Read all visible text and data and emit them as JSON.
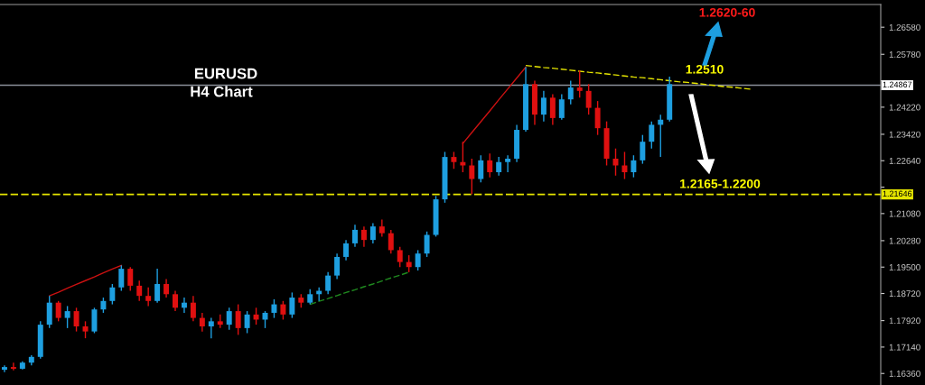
{
  "chart_data": {
    "type": "candlestick",
    "categories": [
      null,
      null,
      null,
      null,
      null,
      null,
      null,
      null,
      null,
      null,
      null,
      null,
      null,
      null,
      null,
      null,
      null,
      null,
      null,
      null,
      null,
      null,
      null,
      null,
      null,
      null,
      null,
      null,
      null,
      null,
      null,
      null,
      null,
      null,
      null,
      null,
      null,
      null,
      null,
      null,
      null,
      null,
      null,
      null,
      null,
      null,
      null,
      null,
      null,
      null,
      null,
      null,
      null,
      null,
      null,
      null,
      null,
      null,
      null,
      null,
      null,
      null,
      null,
      null,
      null,
      null,
      null,
      null,
      null,
      null,
      null,
      null,
      null,
      null,
      null,
      null,
      null,
      null,
      null,
      null,
      null,
      null,
      null,
      null,
      null,
      null,
      null,
      null,
      null,
      null,
      null,
      null,
      null,
      null,
      null,
      null,
      null,
      null
    ],
    "ohlc": [
      [
        1.1647,
        1.166,
        1.164,
        1.1655
      ],
      [
        1.1655,
        1.1668,
        1.1645,
        1.165
      ],
      [
        1.165,
        1.1672,
        1.1648,
        1.1668
      ],
      [
        1.1668,
        1.169,
        1.166,
        1.1685
      ],
      [
        1.1685,
        1.179,
        1.168,
        1.178
      ],
      [
        1.178,
        1.1865,
        1.177,
        1.1845
      ],
      [
        1.1845,
        1.185,
        1.179,
        1.18
      ],
      [
        1.18,
        1.1835,
        1.177,
        1.182
      ],
      [
        1.182,
        1.183,
        1.176,
        1.1775
      ],
      [
        1.1775,
        1.179,
        1.174,
        1.176
      ],
      [
        1.176,
        1.183,
        1.1755,
        1.1825
      ],
      [
        1.1825,
        1.186,
        1.1815,
        1.185
      ],
      [
        1.185,
        1.19,
        1.184,
        1.189
      ],
      [
        1.189,
        1.1955,
        1.188,
        1.1945
      ],
      [
        1.1945,
        1.195,
        1.188,
        1.1895
      ],
      [
        1.1895,
        1.191,
        1.185,
        1.1865
      ],
      [
        1.1865,
        1.189,
        1.1835,
        1.185
      ],
      [
        1.185,
        1.1945,
        1.1845,
        1.19
      ],
      [
        1.19,
        1.1915,
        1.186,
        1.187
      ],
      [
        1.187,
        1.188,
        1.182,
        1.183
      ],
      [
        1.183,
        1.186,
        1.1815,
        1.1845
      ],
      [
        1.1845,
        1.1865,
        1.179,
        1.18
      ],
      [
        1.18,
        1.1815,
        1.176,
        1.1775
      ],
      [
        1.1775,
        1.18,
        1.174,
        1.179
      ],
      [
        1.179,
        1.181,
        1.177,
        1.178
      ],
      [
        1.178,
        1.183,
        1.1765,
        1.182
      ],
      [
        1.182,
        1.184,
        1.175,
        1.177
      ],
      [
        1.177,
        1.182,
        1.1755,
        1.181
      ],
      [
        1.181,
        1.183,
        1.178,
        1.1795
      ],
      [
        1.1795,
        1.182,
        1.177,
        1.1815
      ],
      [
        1.1815,
        1.1855,
        1.18,
        1.184
      ],
      [
        1.184,
        1.185,
        1.1795,
        1.181
      ],
      [
        1.181,
        1.1875,
        1.18,
        1.186
      ],
      [
        1.186,
        1.187,
        1.183,
        1.1845
      ],
      [
        1.1845,
        1.1885,
        1.184,
        1.187
      ],
      [
        1.187,
        1.189,
        1.185,
        1.188
      ],
      [
        1.188,
        1.1935,
        1.187,
        1.1925
      ],
      [
        1.1925,
        1.199,
        1.1915,
        1.198
      ],
      [
        1.198,
        1.203,
        1.197,
        1.202
      ],
      [
        1.202,
        1.2075,
        1.201,
        1.206
      ],
      [
        1.206,
        1.207,
        1.201,
        1.203
      ],
      [
        1.203,
        1.208,
        1.202,
        1.207
      ],
      [
        1.207,
        1.209,
        1.204,
        1.205
      ],
      [
        1.205,
        1.206,
        1.199,
        1.2
      ],
      [
        1.2,
        1.201,
        1.195,
        1.1965
      ],
      [
        1.1965,
        1.1985,
        1.1935,
        1.195
      ],
      [
        1.195,
        1.2,
        1.194,
        1.199
      ],
      [
        1.199,
        1.2055,
        1.198,
        1.2045
      ],
      [
        1.2045,
        1.216,
        1.204,
        1.215
      ],
      [
        1.215,
        1.229,
        1.214,
        1.2275
      ],
      [
        1.2275,
        1.229,
        1.224,
        1.226
      ],
      [
        1.226,
        1.232,
        1.223,
        1.225
      ],
      [
        1.225,
        1.227,
        1.2165,
        1.221
      ],
      [
        1.221,
        1.228,
        1.22,
        1.2265
      ],
      [
        1.2265,
        1.2285,
        1.2215,
        1.223
      ],
      [
        1.223,
        1.2275,
        1.222,
        1.226
      ],
      [
        1.226,
        1.228,
        1.223,
        1.227
      ],
      [
        1.227,
        1.237,
        1.226,
        1.2355
      ],
      [
        1.2355,
        1.254,
        1.235,
        1.249
      ],
      [
        1.249,
        1.25,
        1.237,
        1.24
      ],
      [
        1.24,
        1.247,
        1.238,
        1.245
      ],
      [
        1.245,
        1.246,
        1.237,
        1.239
      ],
      [
        1.239,
        1.246,
        1.2385,
        1.2445
      ],
      [
        1.2445,
        1.25,
        1.243,
        1.248
      ],
      [
        1.248,
        1.253,
        1.245,
        1.247
      ],
      [
        1.247,
        1.249,
        1.24,
        1.242
      ],
      [
        1.242,
        1.244,
        1.234,
        1.236
      ],
      [
        1.236,
        1.238,
        1.225,
        1.227
      ],
      [
        1.227,
        1.23,
        1.222,
        1.225
      ],
      [
        1.225,
        1.229,
        1.221,
        1.223
      ],
      [
        1.223,
        1.228,
        1.2215,
        1.2265
      ],
      [
        1.2265,
        1.234,
        1.2255,
        1.232
      ],
      [
        1.232,
        1.238,
        1.23,
        1.237
      ],
      [
        1.237,
        1.24,
        1.2275,
        1.2385
      ],
      [
        1.2385,
        1.2512,
        1.238,
        1.249
      ],
      null,
      null,
      null,
      null,
      null,
      null,
      null,
      null,
      null,
      null,
      null,
      null,
      null,
      null,
      null,
      null,
      null,
      null,
      null,
      null,
      null,
      null,
      null
    ],
    "series": [
      {
        "type": "line",
        "color": "#e5e500",
        "line_style": "dashed",
        "values": [
          null,
          null,
          null,
          null,
          null,
          null,
          null,
          null,
          null,
          null,
          null,
          null,
          null,
          null,
          null,
          null,
          null,
          null,
          null,
          null,
          null,
          null,
          null,
          null,
          null,
          null,
          null,
          null,
          null,
          null,
          null,
          null,
          null,
          null,
          null,
          null,
          null,
          null,
          null,
          null,
          null,
          null,
          null,
          null,
          null,
          null,
          null,
          null,
          null,
          null,
          null,
          null,
          null,
          null,
          null,
          null,
          null,
          null,
          1.2545,
          1.2542,
          1.2539,
          1.2537,
          1.2534,
          1.2531,
          1.2528,
          1.2525,
          1.2523,
          1.252,
          1.2517,
          1.2514,
          1.2511,
          1.2509,
          1.2506,
          1.2503,
          1.25,
          1.2497,
          1.2495,
          1.2492,
          1.2489,
          1.2486,
          1.2483,
          1.2481,
          1.2478,
          1.2475,
          null,
          null,
          null,
          null,
          null,
          null,
          null,
          null,
          null,
          null,
          null,
          null,
          null,
          null
        ]
      },
      {
        "type": "line",
        "color": "#cc1111",
        "line_style": "solid",
        "values": [
          null,
          null,
          null,
          null,
          null,
          1.1865,
          1.1876,
          1.1888,
          1.1899,
          1.191,
          1.1921,
          1.1933,
          1.1944,
          1.1955,
          null,
          null,
          null,
          null,
          null,
          null,
          null,
          null,
          null,
          null,
          null,
          null,
          null,
          null,
          null,
          null,
          null,
          null,
          null,
          null,
          null,
          null,
          null,
          null,
          null,
          null,
          null,
          null,
          null,
          null,
          null,
          null,
          null,
          null,
          null,
          null,
          null,
          null,
          null,
          null,
          null,
          null,
          null,
          null,
          null,
          null,
          null,
          null,
          null,
          null,
          null,
          null,
          null,
          null,
          null,
          null,
          null,
          null,
          null,
          null,
          null,
          null,
          null,
          null,
          null,
          null,
          null,
          null,
          null,
          null,
          null,
          null,
          null,
          null,
          null,
          null,
          null,
          null,
          null,
          null,
          null,
          null,
          null,
          null
        ]
      },
      {
        "type": "line",
        "color": "#cc1111",
        "line_style": "solid",
        "values": [
          null,
          null,
          null,
          null,
          null,
          null,
          null,
          null,
          null,
          null,
          null,
          null,
          null,
          null,
          null,
          null,
          null,
          null,
          null,
          null,
          null,
          null,
          null,
          null,
          null,
          null,
          null,
          null,
          null,
          null,
          null,
          null,
          null,
          null,
          null,
          null,
          null,
          null,
          null,
          null,
          null,
          null,
          null,
          null,
          null,
          null,
          null,
          null,
          null,
          null,
          null,
          1.2315,
          1.2347,
          1.2379,
          1.2411,
          1.2444,
          1.2476,
          1.2508,
          1.254,
          null,
          null,
          null,
          null,
          null,
          null,
          null,
          null,
          null,
          null,
          null,
          null,
          null,
          null,
          null,
          null,
          null,
          null,
          null,
          null,
          null,
          null,
          null,
          null,
          null,
          null,
          null,
          null,
          null,
          null,
          null,
          null,
          null,
          null,
          null,
          null,
          null,
          null,
          null
        ]
      },
      {
        "type": "line",
        "color": "#1f8a1f",
        "line_style": "dashed",
        "values": [
          null,
          null,
          null,
          null,
          null,
          null,
          null,
          null,
          null,
          null,
          null,
          null,
          null,
          null,
          null,
          null,
          null,
          null,
          null,
          null,
          null,
          null,
          null,
          null,
          null,
          null,
          null,
          null,
          null,
          null,
          null,
          null,
          null,
          null,
          1.184,
          1.1849,
          1.1857,
          1.1866,
          1.1875,
          1.1883,
          1.1892,
          1.19,
          1.1909,
          1.1918,
          1.1926,
          1.1935,
          null,
          null,
          null,
          null,
          null,
          null,
          null,
          null,
          null,
          null,
          null,
          null,
          null,
          null,
          null,
          null,
          null,
          null,
          null,
          null,
          null,
          null,
          null,
          null,
          null,
          null,
          null,
          null,
          null,
          null,
          null,
          null,
          null,
          null,
          null,
          null,
          null,
          null,
          null,
          null,
          null,
          null,
          null,
          null,
          null,
          null,
          null,
          null,
          null,
          null,
          null,
          null
        ]
      }
    ],
    "ylim": [
      1.1602,
      1.2725
    ],
    "yticks": [
      {
        "value": 1.2658,
        "label": "1.26580"
      },
      {
        "value": 1.2578,
        "label": "1.25780"
      },
      {
        "value": 1.25,
        "label": null
      },
      {
        "value": 1.2422,
        "label": "1.24220"
      },
      {
        "value": 1.2342,
        "label": "1.23420"
      },
      {
        "value": 1.2264,
        "label": "1.22640"
      },
      {
        "value": 1.2186,
        "label": null
      },
      {
        "value": 1.2108,
        "label": "1.21080"
      },
      {
        "value": 1.2028,
        "label": "1.20280"
      },
      {
        "value": 1.195,
        "label": "1.19500"
      },
      {
        "value": 1.1872,
        "label": "1.18720"
      },
      {
        "value": 1.1792,
        "label": "1.17920"
      },
      {
        "value": 1.1714,
        "label": "1.17140"
      },
      {
        "value": 1.1636,
        "label": "1.16360"
      }
    ],
    "tick_labels": "y",
    "ref_lines": [
      {
        "axis": "y",
        "value": 1.24867,
        "label": "1.24867",
        "color": "#8a8f99",
        "line_style": "solid"
      },
      {
        "axis": "y",
        "value": 1.21646,
        "label": "1.21646",
        "color": "#e5e500",
        "line_style": "dashed"
      }
    ],
    "annotations": [
      "EURUSD",
      "H4 Chart",
      "1.2620-60",
      "1.2510",
      "1.2165-1.2200"
    ],
    "grid": false,
    "legend": false
  }
}
